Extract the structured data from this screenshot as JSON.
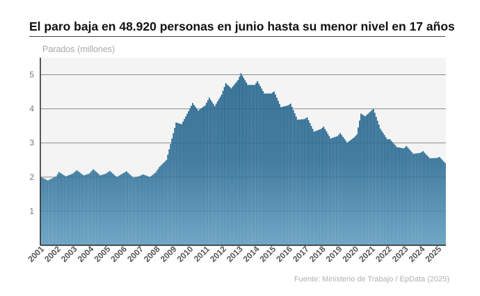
{
  "chart_data": {
    "type": "bar",
    "title": "El paro baja en 48.920 personas en junio hasta su menor nivel en 17 años",
    "ylabel": "Parados (millones)",
    "xlabel": "",
    "source": "Fuente: Ministerio de Trabajo / EpData (2025)",
    "ylim": [
      0,
      5.5
    ],
    "yticks": [
      "1",
      "2",
      "3",
      "4",
      "5"
    ],
    "ytick_values": [
      1,
      2,
      3,
      4,
      5
    ],
    "xticks": [
      "2001",
      "2002",
      "2003",
      "2004",
      "2005",
      "2006",
      "2007",
      "2008",
      "2009",
      "2010",
      "2011",
      "2012",
      "2013",
      "2014",
      "2015",
      "2016",
      "2017",
      "2018",
      "2019",
      "2020",
      "2021",
      "2022",
      "2023",
      "2024",
      "2025"
    ],
    "grid": true,
    "bar_color": "#2d6e96",
    "series": [
      {
        "frequency": "monthly",
        "start": "2001-01",
        "end": "2025-06",
        "anchors": [
          [
            "2001-01",
            2.0
          ],
          [
            "2001-06",
            1.9
          ],
          [
            "2001-12",
            2.02
          ],
          [
            "2002-02",
            2.15
          ],
          [
            "2002-07",
            2.02
          ],
          [
            "2002-12",
            2.1
          ],
          [
            "2003-03",
            2.2
          ],
          [
            "2003-08",
            2.05
          ],
          [
            "2003-12",
            2.1
          ],
          [
            "2004-03",
            2.23
          ],
          [
            "2004-08",
            2.05
          ],
          [
            "2004-12",
            2.1
          ],
          [
            "2005-03",
            2.18
          ],
          [
            "2005-08",
            2.0
          ],
          [
            "2005-12",
            2.1
          ],
          [
            "2006-03",
            2.17
          ],
          [
            "2006-08",
            1.98
          ],
          [
            "2006-12",
            2.02
          ],
          [
            "2007-03",
            2.08
          ],
          [
            "2007-08",
            2.0
          ],
          [
            "2007-12",
            2.13
          ],
          [
            "2008-03",
            2.3
          ],
          [
            "2008-08",
            2.5
          ],
          [
            "2008-12",
            3.13
          ],
          [
            "2009-03",
            3.6
          ],
          [
            "2009-07",
            3.55
          ],
          [
            "2009-12",
            3.93
          ],
          [
            "2010-03",
            4.17
          ],
          [
            "2010-07",
            3.95
          ],
          [
            "2010-12",
            4.1
          ],
          [
            "2011-03",
            4.33
          ],
          [
            "2011-07",
            4.08
          ],
          [
            "2011-12",
            4.42
          ],
          [
            "2012-03",
            4.75
          ],
          [
            "2012-07",
            4.6
          ],
          [
            "2012-12",
            4.85
          ],
          [
            "2013-02",
            5.04
          ],
          [
            "2013-07",
            4.7
          ],
          [
            "2013-12",
            4.7
          ],
          [
            "2014-02",
            4.81
          ],
          [
            "2014-07",
            4.45
          ],
          [
            "2014-12",
            4.45
          ],
          [
            "2015-02",
            4.51
          ],
          [
            "2015-07",
            4.05
          ],
          [
            "2015-12",
            4.1
          ],
          [
            "2016-02",
            4.15
          ],
          [
            "2016-07",
            3.68
          ],
          [
            "2016-12",
            3.7
          ],
          [
            "2017-02",
            3.75
          ],
          [
            "2017-07",
            3.33
          ],
          [
            "2017-12",
            3.41
          ],
          [
            "2018-02",
            3.48
          ],
          [
            "2018-07",
            3.13
          ],
          [
            "2018-12",
            3.2
          ],
          [
            "2019-02",
            3.29
          ],
          [
            "2019-07",
            3.01
          ],
          [
            "2019-12",
            3.16
          ],
          [
            "2020-02",
            3.25
          ],
          [
            "2020-05",
            3.86
          ],
          [
            "2020-08",
            3.78
          ],
          [
            "2021-02",
            4.0
          ],
          [
            "2021-07",
            3.42
          ],
          [
            "2021-12",
            3.11
          ],
          [
            "2022-02",
            3.11
          ],
          [
            "2022-07",
            2.88
          ],
          [
            "2022-12",
            2.84
          ],
          [
            "2023-02",
            2.91
          ],
          [
            "2023-07",
            2.68
          ],
          [
            "2023-12",
            2.71
          ],
          [
            "2024-02",
            2.76
          ],
          [
            "2024-07",
            2.55
          ],
          [
            "2024-12",
            2.56
          ],
          [
            "2025-02",
            2.59
          ],
          [
            "2025-06",
            2.41
          ]
        ]
      }
    ]
  }
}
